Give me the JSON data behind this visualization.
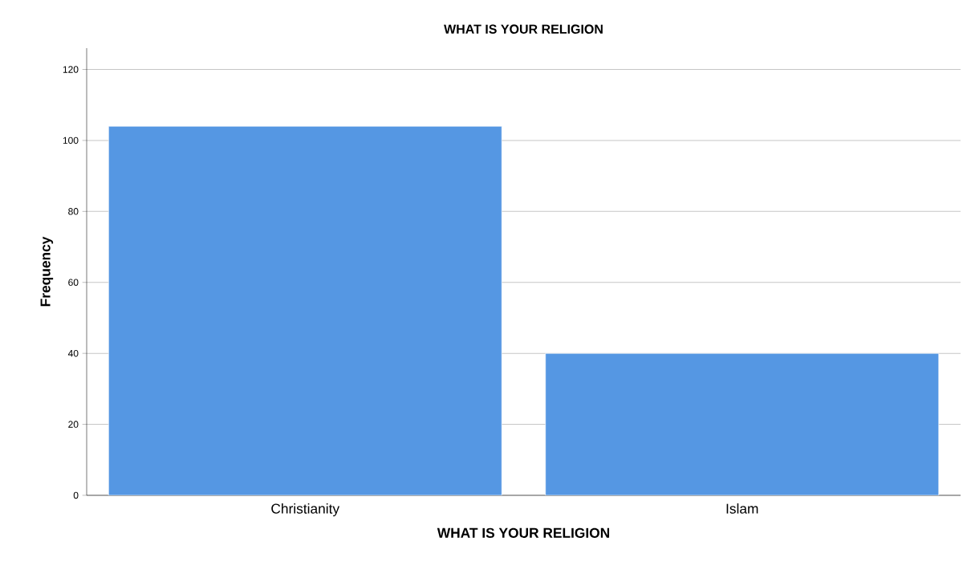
{
  "chart_data": {
    "type": "bar",
    "title": "WHAT IS YOUR RELIGION",
    "xlabel": "WHAT IS YOUR RELIGION",
    "ylabel": "Frequency",
    "categories": [
      "Christianity",
      "Islam"
    ],
    "values": [
      104,
      40
    ],
    "color": "#5597e3",
    "ylim": [
      0,
      126
    ],
    "yticks": [
      0,
      20,
      40,
      60,
      80,
      100,
      120
    ],
    "grid": "y"
  }
}
